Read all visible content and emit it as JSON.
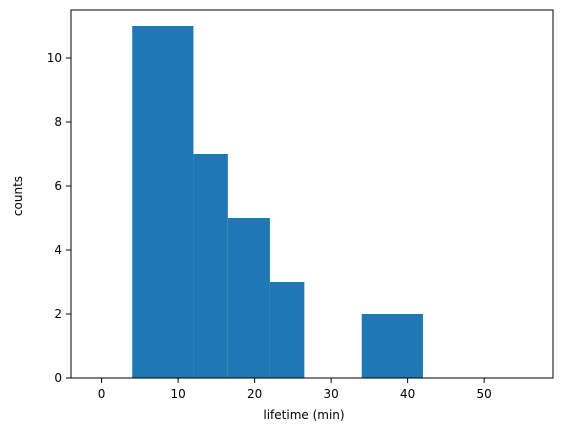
{
  "chart_data": {
    "type": "bar",
    "title": "",
    "xlabel": "lifetime (min)",
    "ylabel": "counts",
    "bins": [
      {
        "x0": 4,
        "x1": 12,
        "count": 11
      },
      {
        "x0": 12,
        "x1": 16.5,
        "count": 7
      },
      {
        "x0": 16.5,
        "x1": 22,
        "count": 5
      },
      {
        "x0": 22,
        "x1": 26.5,
        "count": 3
      },
      {
        "x0": 34,
        "x1": 42,
        "count": 2
      }
    ],
    "xlim": [
      -4,
      59
    ],
    "ylim": [
      0,
      11.5
    ],
    "xticks": [
      0,
      10,
      20,
      30,
      40,
      50
    ],
    "yticks": [
      0,
      2,
      4,
      6,
      8,
      10
    ],
    "grid": false,
    "bar_color": "#1f77b4",
    "axis_color": "#000000"
  }
}
